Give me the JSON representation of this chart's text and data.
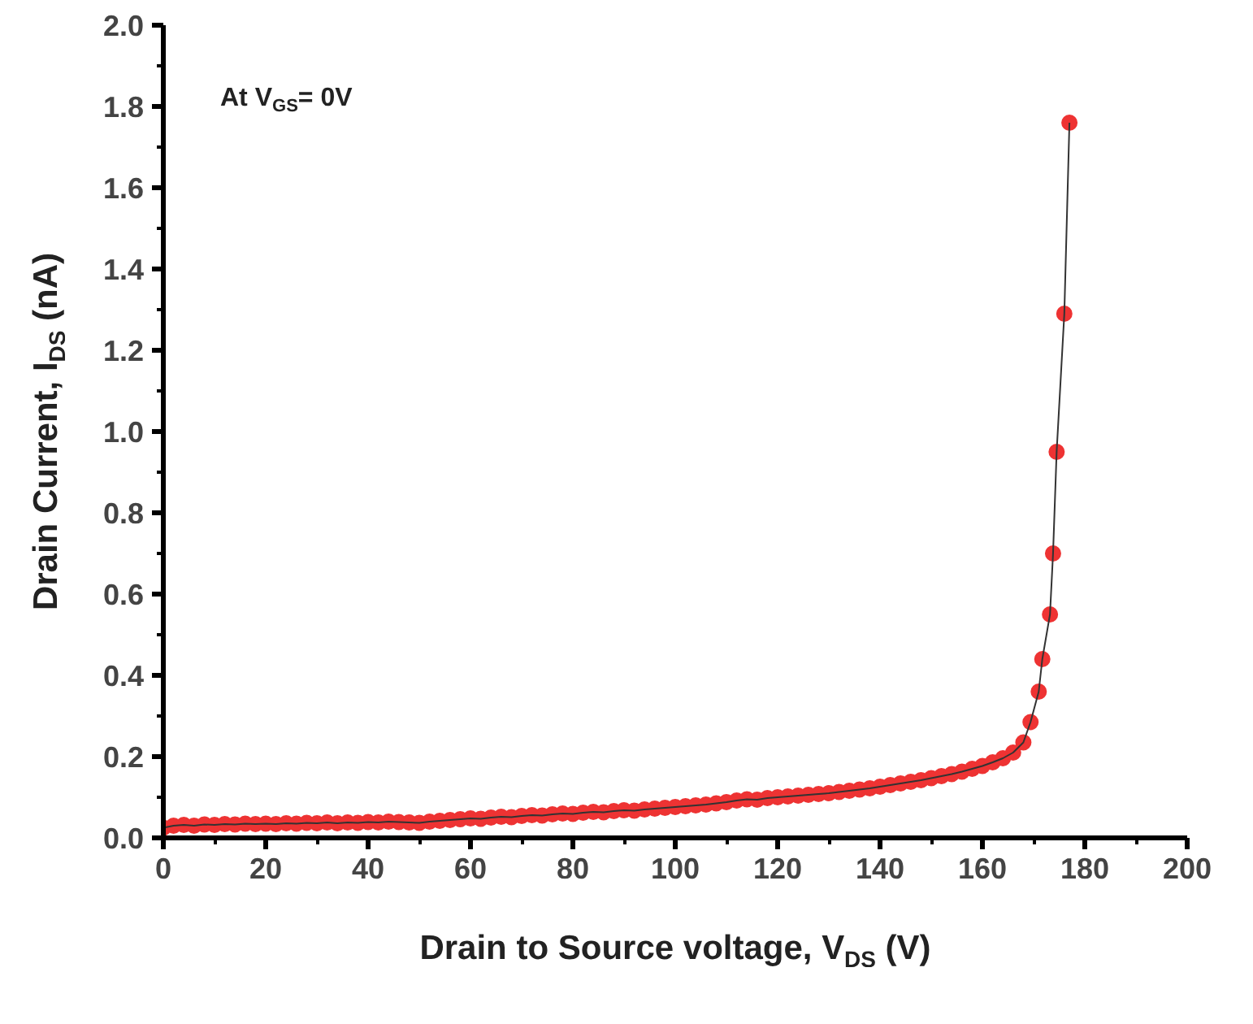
{
  "chart_data": {
    "type": "line",
    "xlabel": "Drain to Source voltage, V$_{DS}$ (V)",
    "ylabel": "Drain Current, I$_{DS}$ (nA)",
    "annotations": [
      "At V$_{GS}$= 0V"
    ],
    "marker": "circle",
    "grid": false,
    "xlim": [
      0,
      200
    ],
    "xticks": [
      0,
      20,
      40,
      60,
      80,
      100,
      120,
      140,
      160,
      180,
      200
    ],
    "ylim": [
      0,
      2.0
    ],
    "yticks": [
      {
        "value": 0,
        "label": "0.0"
      },
      {
        "value": 0.2,
        "label": "0.2"
      },
      {
        "value": 0.4,
        "label": "0.4"
      },
      {
        "value": 0.6,
        "label": "0.6"
      },
      {
        "value": 0.8,
        "label": "0.8"
      },
      {
        "value": 1.0,
        "label": "1.0"
      },
      {
        "value": 1.2,
        "label": "1.2"
      },
      {
        "value": 1.4,
        "label": "1.4"
      },
      {
        "value": 1.6,
        "label": "1.6"
      },
      {
        "value": 1.8,
        "label": "1.8"
      },
      {
        "value": 2.0,
        "label": "2.0"
      }
    ],
    "x": [
      0,
      2,
      4,
      6,
      8,
      10,
      12,
      14,
      16,
      18,
      20,
      22,
      24,
      26,
      28,
      30,
      32,
      34,
      36,
      38,
      40,
      42,
      44,
      46,
      48,
      50,
      52,
      54,
      56,
      58,
      60,
      62,
      64,
      66,
      68,
      70,
      72,
      74,
      76,
      78,
      80,
      82,
      84,
      86,
      88,
      90,
      92,
      94,
      96,
      98,
      100,
      102,
      104,
      106,
      108,
      110,
      112,
      114,
      116,
      118,
      120,
      122,
      124,
      126,
      128,
      130,
      132,
      134,
      136,
      138,
      140,
      142,
      144,
      146,
      148,
      150,
      152,
      154,
      156,
      158,
      160,
      162,
      164,
      166,
      168,
      169.4,
      171,
      171.7,
      173.2,
      173.8,
      174.5,
      176,
      177
    ],
    "series": [
      {
        "color": "#ee3333",
        "values": [
          0.025,
          0.03,
          0.032,
          0.03,
          0.033,
          0.032,
          0.034,
          0.033,
          0.035,
          0.034,
          0.035,
          0.034,
          0.036,
          0.035,
          0.037,
          0.036,
          0.038,
          0.036,
          0.038,
          0.037,
          0.039,
          0.038,
          0.04,
          0.039,
          0.038,
          0.037,
          0.04,
          0.042,
          0.044,
          0.046,
          0.048,
          0.047,
          0.05,
          0.052,
          0.051,
          0.054,
          0.056,
          0.055,
          0.058,
          0.06,
          0.059,
          0.062,
          0.064,
          0.063,
          0.066,
          0.068,
          0.067,
          0.07,
          0.072,
          0.074,
          0.076,
          0.078,
          0.08,
          0.082,
          0.085,
          0.088,
          0.092,
          0.095,
          0.094,
          0.098,
          0.1,
          0.102,
          0.104,
          0.106,
          0.108,
          0.11,
          0.113,
          0.116,
          0.119,
          0.122,
          0.126,
          0.13,
          0.134,
          0.138,
          0.142,
          0.147,
          0.152,
          0.157,
          0.163,
          0.17,
          0.177,
          0.186,
          0.196,
          0.21,
          0.235,
          0.285,
          0.36,
          0.44,
          0.55,
          0.7,
          0.95,
          1.29,
          1.76
        ]
      }
    ]
  }
}
